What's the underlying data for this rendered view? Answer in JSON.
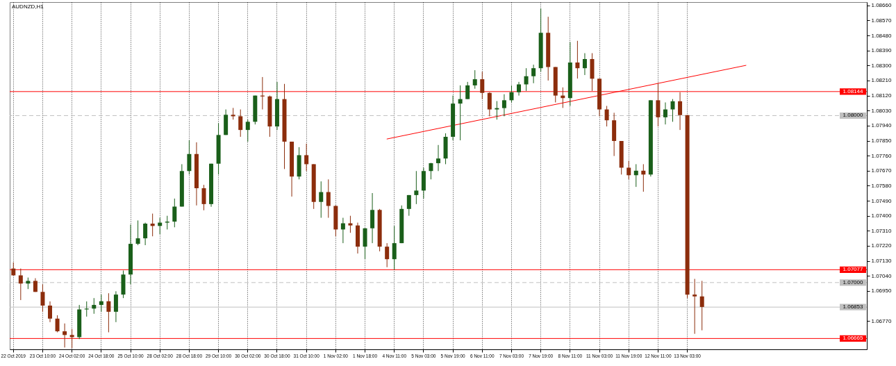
{
  "chart_data": {
    "type": "candlestick",
    "title": "AUDNZD,H1",
    "categories": [
      "22 Oct 2019",
      null,
      null,
      null,
      "23 Oct 10:00",
      null,
      null,
      null,
      "24 Oct 02:00",
      null,
      null,
      null,
      "24 Oct 18:00",
      null,
      null,
      null,
      "25 Oct 10:00",
      null,
      null,
      null,
      "28 Oct 02:00",
      null,
      null,
      null,
      "28 Oct 18:00",
      null,
      null,
      null,
      "29 Oct 10:00",
      null,
      null,
      null,
      "30 Oct 02:00",
      null,
      null,
      null,
      "30 Oct 18:00",
      null,
      null,
      null,
      "31 Oct 10:00",
      null,
      null,
      null,
      "1 Nov 02:00",
      null,
      null,
      null,
      "1 Nov 18:00",
      null,
      null,
      null,
      "4 Nov 11:00",
      null,
      null,
      null,
      "5 Nov 03:00",
      null,
      null,
      null,
      "5 Nov 19:00",
      null,
      null,
      null,
      "6 Nov 11:00",
      null,
      null,
      null,
      "7 Nov 03:00",
      null,
      null,
      null,
      "7 Nov 19:00",
      null,
      null,
      null,
      "8 Nov 11:00",
      null,
      null,
      null,
      "11 Nov 03:00",
      null,
      null,
      null,
      "11 Nov 19:00",
      null,
      null,
      null,
      "12 Nov 11:00",
      null,
      null,
      null,
      "13 Nov 03:00",
      null,
      null,
      null,
      null,
      null,
      null,
      null,
      null,
      null,
      null,
      null,
      null,
      null,
      null,
      null,
      null,
      null,
      null,
      null,
      null,
      null,
      null,
      null,
      null
    ],
    "ohlc": [
      [
        1.07084,
        1.07121,
        1.07043,
        1.07043
      ],
      [
        1.07043,
        1.07084,
        1.06895,
        1.06994
      ],
      [
        1.06994,
        1.0703,
        1.06961,
        1.0701
      ],
      [
        1.0701,
        1.07026,
        1.06944,
        1.06944
      ],
      [
        1.06944,
        1.06989,
        1.06825,
        1.06862
      ],
      [
        1.06862,
        1.06887,
        1.06763,
        1.06784
      ],
      [
        1.06784,
        1.06804,
        1.06702,
        1.06708
      ],
      [
        1.06708,
        1.06755,
        1.06611,
        1.06686
      ],
      [
        1.06686,
        1.06722,
        1.06607,
        1.06673
      ],
      [
        1.06673,
        1.06866,
        1.06661,
        1.06839
      ],
      [
        1.06839,
        1.06887,
        1.06796,
        1.06844
      ],
      [
        1.06844,
        1.06907,
        1.06813,
        1.06866
      ],
      [
        1.06866,
        1.06928,
        1.06825,
        1.06888
      ],
      [
        1.06888,
        1.06936,
        1.06702,
        1.06825
      ],
      [
        1.06825,
        1.06948,
        1.06763,
        1.06928
      ],
      [
        1.06928,
        1.07072,
        1.06907,
        1.07048
      ],
      [
        1.07048,
        1.07347,
        1.06989,
        1.07232
      ],
      [
        1.07232,
        1.07372,
        1.07224,
        1.07265
      ],
      [
        1.07265,
        1.07359,
        1.07224,
        1.07353
      ],
      [
        1.07353,
        1.07413,
        1.07277,
        1.07339
      ],
      [
        1.07339,
        1.07388,
        1.07289,
        1.07359
      ],
      [
        1.07359,
        1.074,
        1.07318,
        1.07365
      ],
      [
        1.07365,
        1.07503,
        1.07331,
        1.07455
      ],
      [
        1.07455,
        1.07709,
        1.07455,
        1.07668
      ],
      [
        1.07668,
        1.07852,
        1.07647,
        1.0777
      ],
      [
        1.0777,
        1.0784,
        1.07462,
        1.07565
      ],
      [
        1.07565,
        1.07585,
        1.07433,
        1.0747
      ],
      [
        1.0747,
        1.07712,
        1.07454,
        1.07712
      ],
      [
        1.07712,
        1.07955,
        1.07647,
        1.07884
      ],
      [
        1.07884,
        1.08037,
        1.07884,
        1.08005
      ],
      [
        1.08005,
        1.08046,
        1.07976,
        1.07996
      ],
      [
        1.07996,
        1.08037,
        1.07873,
        1.07914
      ],
      [
        1.07914,
        1.07976,
        1.07844,
        1.07963
      ],
      [
        1.07963,
        1.0812,
        1.07947,
        1.0812
      ],
      [
        1.0812,
        1.08231,
        1.08037,
        1.08115
      ],
      [
        1.08115,
        1.0812,
        1.07873,
        1.07935
      ],
      [
        1.07935,
        1.08202,
        1.07914,
        1.08099
      ],
      [
        1.08099,
        1.0819,
        1.0768,
        1.07844
      ],
      [
        1.07844,
        1.07844,
        1.07515,
        1.07635
      ],
      [
        1.07635,
        1.07811,
        1.07618,
        1.07763
      ],
      [
        1.07763,
        1.07832,
        1.07668,
        1.07709
      ],
      [
        1.07709,
        1.07709,
        1.07441,
        1.07483
      ],
      [
        1.07483,
        1.07606,
        1.07388,
        1.07542
      ],
      [
        1.07542,
        1.07618,
        1.07388,
        1.07459
      ],
      [
        1.07459,
        1.07462,
        1.07277,
        1.07318
      ],
      [
        1.07318,
        1.07388,
        1.07236,
        1.07355
      ],
      [
        1.07355,
        1.074,
        1.07298,
        1.07342
      ],
      [
        1.07342,
        1.07359,
        1.07174,
        1.07215
      ],
      [
        1.07215,
        1.07325,
        1.07141,
        1.07325
      ],
      [
        1.07325,
        1.07536,
        1.07236,
        1.07435
      ],
      [
        1.07435,
        1.07441,
        1.07187,
        1.07215
      ],
      [
        1.07215,
        1.07236,
        1.07092,
        1.0714
      ],
      [
        1.0714,
        1.07339,
        1.07076,
        1.07236
      ],
      [
        1.07236,
        1.07462,
        1.07236,
        1.07441
      ],
      [
        1.07441,
        1.07524,
        1.074,
        1.07524
      ],
      [
        1.07524,
        1.07668,
        1.0747,
        1.07551
      ],
      [
        1.07551,
        1.07688,
        1.07503,
        1.07668
      ],
      [
        1.07668,
        1.07717,
        1.07618,
        1.07715
      ],
      [
        1.07715,
        1.07824,
        1.07668,
        1.07743
      ],
      [
        1.07743,
        1.07894,
        1.07709,
        1.07873
      ],
      [
        1.07873,
        1.0812,
        1.07852,
        1.08072
      ],
      [
        1.08072,
        1.08181,
        1.07852,
        1.08099
      ],
      [
        1.08099,
        1.08202,
        1.08099,
        1.08181
      ],
      [
        1.08181,
        1.08272,
        1.08161,
        1.08218
      ],
      [
        1.08218,
        1.08263,
        1.08099,
        1.08136
      ],
      [
        1.08136,
        1.0814,
        1.07996,
        1.08037
      ],
      [
        1.08037,
        1.08087,
        1.07976,
        1.08045
      ],
      [
        1.08045,
        1.08128,
        1.07996,
        1.08092
      ],
      [
        1.08092,
        1.08181,
        1.08079,
        1.0814
      ],
      [
        1.0814,
        1.08202,
        1.0812,
        1.08187
      ],
      [
        1.08187,
        1.08284,
        1.08148,
        1.08236
      ],
      [
        1.08236,
        1.08305,
        1.08194,
        1.08284
      ],
      [
        1.08284,
        1.08642,
        1.08263,
        1.08496
      ],
      [
        1.08496,
        1.08592,
        1.0821,
        1.08291
      ],
      [
        1.08291,
        1.08291,
        1.08079,
        1.0812
      ],
      [
        1.0812,
        1.08169,
        1.08046,
        1.08105
      ],
      [
        1.08105,
        1.0844,
        1.08058,
        1.08318
      ],
      [
        1.08318,
        1.08448,
        1.08222,
        1.08284
      ],
      [
        1.08284,
        1.08374,
        1.08243,
        1.08339
      ],
      [
        1.08339,
        1.08374,
        1.08148,
        1.08221
      ],
      [
        1.08221,
        1.08221,
        1.07996,
        1.08037
      ],
      [
        1.08037,
        1.08058,
        1.07935,
        1.07972
      ],
      [
        1.07972,
        1.08017,
        1.07758,
        1.07848
      ],
      [
        1.07848,
        1.07848,
        1.07647,
        1.07688
      ],
      [
        1.07688,
        1.07729,
        1.07618,
        1.07643
      ],
      [
        1.07643,
        1.07709,
        1.07573,
        1.0767
      ],
      [
        1.0767,
        1.07709,
        1.07544,
        1.07647
      ],
      [
        1.07647,
        1.08092,
        1.07635,
        1.08092
      ],
      [
        1.08092,
        1.08194,
        1.07935,
        1.0799
      ],
      [
        1.0799,
        1.08079,
        1.07947,
        1.08037
      ],
      [
        1.08037,
        1.08099,
        1.07963,
        1.08086
      ],
      [
        1.08086,
        1.0814,
        1.07914,
        1.08003
      ],
      [
        1.08003,
        1.08003,
        1.06907,
        1.06928
      ],
      [
        1.06928,
        1.07022,
        1.06693,
        1.06917
      ],
      [
        1.06917,
        1.0701,
        1.06714,
        1.06854
      ],
      null,
      null,
      null,
      null,
      null,
      null,
      null,
      null,
      null,
      null,
      null,
      null,
      null,
      null,
      null,
      null,
      null,
      null,
      null,
      null,
      null,
      null
    ],
    "colors": [
      "#8c2d0c",
      "#8c2d0c",
      "#1a5f1a",
      "#8c2d0c",
      "#8c2d0c",
      "#8c2d0c",
      "#8c2d0c",
      "#8c2d0c",
      "#8c2d0c",
      "#1a5f1a",
      "#1a5f1a",
      "#1a5f1a",
      "#1a5f1a",
      "#8c2d0c",
      "#1a5f1a",
      "#1a5f1a",
      "#1a5f1a",
      "#1a5f1a",
      "#1a5f1a",
      "#8c2d0c",
      "#1a5f1a",
      "#1a5f1a",
      "#1a5f1a",
      "#1a5f1a",
      "#1a5f1a",
      "#8c2d0c",
      "#8c2d0c",
      "#1a5f1a",
      "#1a5f1a",
      "#1a5f1a",
      "#8c2d0c",
      "#8c2d0c",
      "#1a5f1a",
      "#1a5f1a",
      "#8c2d0c",
      "#8c2d0c",
      "#1a5f1a",
      "#8c2d0c",
      "#8c2d0c",
      "#1a5f1a",
      "#8c2d0c",
      "#8c2d0c",
      "#1a5f1a",
      "#8c2d0c",
      "#8c2d0c",
      "#1a5f1a",
      "#8c2d0c",
      "#8c2d0c",
      "#1a5f1a",
      "#1a5f1a",
      "#8c2d0c",
      "#8c2d0c",
      "#1a5f1a",
      "#1a5f1a",
      "#1a5f1a",
      "#1a5f1a",
      "#1a5f1a",
      "#1a5f1a",
      "#1a5f1a",
      "#1a5f1a",
      "#1a5f1a",
      "#1a5f1a",
      "#1a5f1a",
      "#1a5f1a",
      "#8c2d0c",
      "#8c2d0c",
      "#1a5f1a",
      "#1a5f1a",
      "#1a5f1a",
      "#1a5f1a",
      "#1a5f1a",
      "#1a5f1a",
      "#1a5f1a",
      "#8c2d0c",
      "#8c2d0c",
      "#8c2d0c",
      "#1a5f1a",
      "#8c2d0c",
      "#1a5f1a",
      "#8c2d0c",
      "#8c2d0c",
      "#8c2d0c",
      "#8c2d0c",
      "#8c2d0c",
      "#8c2d0c",
      "#1a5f1a",
      "#8c2d0c",
      "#1a5f1a",
      "#8c2d0c",
      "#1a5f1a",
      "#1a5f1a",
      "#8c2d0c",
      "#8c2d0c",
      "#8c2d0c",
      "#8c2d0c",
      null,
      null,
      null,
      null,
      null,
      null,
      null,
      null,
      null,
      null,
      null,
      null,
      null,
      null,
      null,
      null,
      null,
      null,
      null,
      null,
      null,
      null
    ],
    "series": [
      {
        "type": "line",
        "color": "#ff0000",
        "values": [
          null,
          null,
          null,
          null,
          null,
          null,
          null,
          null,
          null,
          null,
          null,
          null,
          null,
          null,
          null,
          null,
          null,
          null,
          null,
          null,
          null,
          null,
          null,
          null,
          null,
          null,
          null,
          null,
          null,
          null,
          null,
          null,
          null,
          null,
          null,
          null,
          null,
          null,
          null,
          null,
          null,
          null,
          null,
          null,
          null,
          null,
          null,
          null,
          null,
          null,
          null,
          1.0786,
          null,
          null,
          null,
          null,
          null,
          null,
          null,
          null,
          null,
          null,
          null,
          null,
          null,
          null,
          null,
          null,
          null,
          null,
          null,
          null,
          null,
          null,
          null,
          null,
          null,
          null,
          null,
          null,
          null,
          null,
          null,
          null,
          null,
          null,
          null,
          null,
          null,
          null,
          null,
          null,
          null,
          null,
          null,
          null,
          null,
          null,
          null,
          null,
          1.08301,
          null,
          null,
          null,
          null,
          null,
          null,
          null,
          null,
          null,
          null,
          null,
          null,
          null,
          null,
          null,
          null
        ]
      }
    ],
    "ylim": [
      1.066,
      1.0868
    ],
    "yticks": [
      {
        "value": 1.0866,
        "label": "1.08660"
      },
      {
        "value": 1.0857,
        "label": "1.08570"
      },
      {
        "value": 1.0848,
        "label": "1.08480"
      },
      {
        "value": 1.0839,
        "label": "1.08390"
      },
      {
        "value": 1.083,
        "label": "1.08300"
      },
      {
        "value": 1.0821,
        "label": "1.08210"
      },
      {
        "value": 1.0812,
        "label": "1.08120"
      },
      {
        "value": 1.0803,
        "label": "1.08030"
      },
      {
        "value": 1.0794,
        "label": "1.07940"
      },
      {
        "value": 1.0785,
        "label": "1.07850"
      },
      {
        "value": 1.0776,
        "label": "1.07760"
      },
      {
        "value": 1.0767,
        "label": "1.07670"
      },
      {
        "value": 1.0758,
        "label": "1.07580"
      },
      {
        "value": 1.0749,
        "label": "1.07490"
      },
      {
        "value": 1.074,
        "label": "1.07400"
      },
      {
        "value": 1.0731,
        "label": "1.07310"
      },
      {
        "value": 1.0722,
        "label": "1.07220"
      },
      {
        "value": 1.0713,
        "label": "1.07130"
      },
      {
        "value": 1.0704,
        "label": "1.07040"
      },
      {
        "value": 1.0695,
        "label": "1.06950"
      },
      {
        "value": 1.0677,
        "label": "1.06770"
      }
    ],
    "grid": "x",
    "ref_lines": [
      {
        "axis": "y",
        "value": 1.08,
        "label": "1.08000",
        "color": "#c0c0c0",
        "line_style": "dashed"
      },
      {
        "axis": "y",
        "value": 1.07,
        "label": "1.07000",
        "color": "#c0c0c0",
        "line_style": "dashed"
      },
      {
        "axis": "y",
        "value": 1.06853,
        "label": "1.06853",
        "color": "#c0c0c0"
      },
      {
        "axis": "y",
        "value": 1.08144,
        "label": "1.08144",
        "color": "#ff0000"
      },
      {
        "axis": "y",
        "value": 1.07077,
        "label": "1.07077",
        "color": "#ff0000"
      },
      {
        "axis": "y",
        "value": 1.06665,
        "label": "1.06665",
        "color": "#ff0000"
      }
    ]
  }
}
